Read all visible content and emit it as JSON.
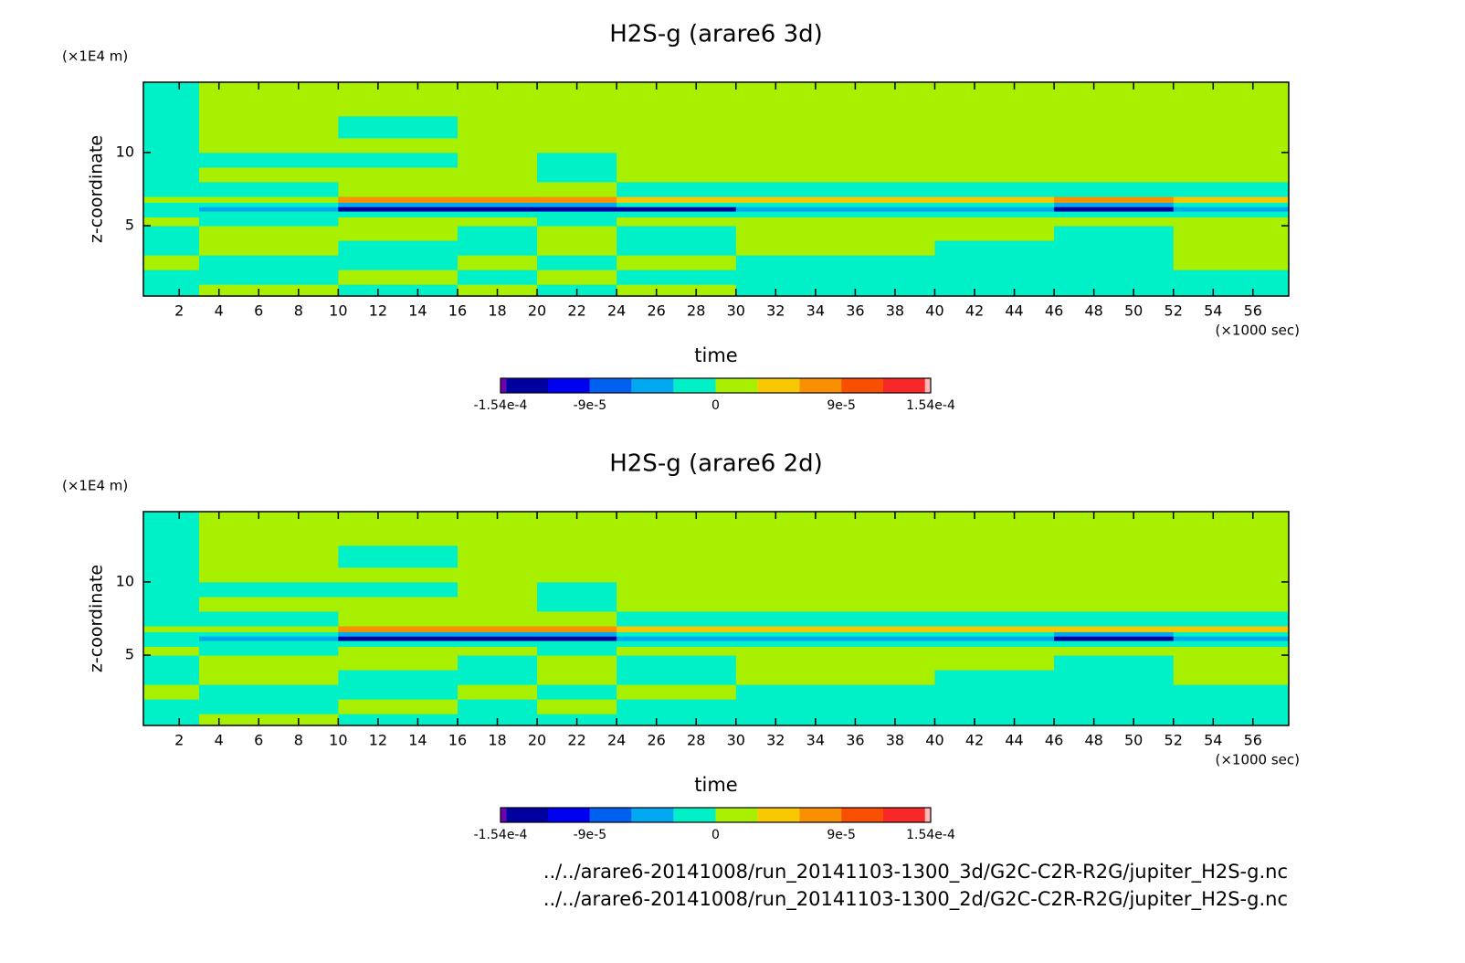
{
  "chart_data": [
    {
      "type": "contour",
      "title": "H2S-g (arare6 3d)",
      "ylabel": "z-coordinate",
      "ylabel_unit": "(×1E4 m)",
      "xlabel": "time",
      "xlabel_unit": "(×1000 sec)",
      "xlim": [
        0.2,
        57.8
      ],
      "ylim": [
        0.2,
        14.8
      ],
      "xticks": [
        2,
        4,
        6,
        8,
        10,
        12,
        14,
        16,
        18,
        20,
        22,
        24,
        26,
        28,
        30,
        32,
        34,
        36,
        38,
        40,
        42,
        44,
        46,
        48,
        50,
        52,
        54,
        56
      ],
      "yticks": [
        5,
        10
      ],
      "x_edges": [
        0.2,
        3,
        10,
        16,
        20,
        24,
        30,
        40,
        46,
        52,
        57.8
      ],
      "y_edges": [
        0.2,
        1,
        2,
        3,
        4,
        5,
        5.6,
        6,
        6.3,
        6.6,
        7,
        8,
        9,
        10,
        11,
        12.5,
        14.8
      ],
      "z": [
        [
          -1e-05,
          1e-05,
          -1e-05,
          1e-05,
          -1e-05,
          1e-05,
          -1e-05,
          -1e-05,
          -1e-05,
          -1e-05
        ],
        [
          -1e-05,
          -1e-05,
          1e-05,
          -1e-05,
          1e-05,
          -1e-05,
          -1e-05,
          -1e-05,
          -1e-05,
          -1e-05
        ],
        [
          1e-05,
          -1e-05,
          -1e-05,
          1e-05,
          -1e-05,
          1e-05,
          -1e-05,
          -1e-05,
          -1e-05,
          1e-05
        ],
        [
          -1e-05,
          1e-05,
          -1e-05,
          -1e-05,
          1e-05,
          -1e-05,
          1e-05,
          -1e-05,
          -1e-05,
          1e-05
        ],
        [
          -1e-05,
          1e-05,
          1e-05,
          -1e-05,
          1e-05,
          -1e-05,
          1e-05,
          1e-05,
          -1e-05,
          1e-05
        ],
        [
          1e-05,
          -1e-05,
          1e-05,
          1e-05,
          -1e-05,
          1e-05,
          1e-05,
          1e-05,
          1e-05,
          1e-05
        ],
        [
          -1e-05,
          -1e-05,
          -1e-05,
          -1e-05,
          -1e-05,
          -1e-05,
          -1e-05,
          -1e-05,
          -1e-05,
          -1e-05
        ],
        [
          -1e-05,
          -4e-05,
          -0.00013,
          -0.00013,
          -0.00013,
          -0.00013,
          -4e-05,
          -4e-05,
          -0.00013,
          -4e-05
        ],
        [
          -1e-05,
          -1e-05,
          -4e-05,
          -4e-05,
          -4e-05,
          -1e-05,
          -1e-05,
          -1e-05,
          -4e-05,
          -1e-05
        ],
        [
          1e-05,
          1e-05,
          7e-05,
          7e-05,
          7e-05,
          4e-05,
          4e-05,
          4e-05,
          7e-05,
          4e-05
        ],
        [
          -1e-05,
          -1e-05,
          1e-05,
          1e-05,
          1e-05,
          -1e-05,
          -1e-05,
          -1e-05,
          -1e-05,
          -1e-05
        ],
        [
          -1e-05,
          1e-05,
          1e-05,
          1e-05,
          -1e-05,
          1e-05,
          1e-05,
          1e-05,
          1e-05,
          1e-05
        ],
        [
          -1e-05,
          -1e-05,
          -1e-05,
          1e-05,
          -1e-05,
          1e-05,
          1e-05,
          1e-05,
          1e-05,
          1e-05
        ],
        [
          -1e-05,
          1e-05,
          1e-05,
          1e-05,
          1e-05,
          1e-05,
          1e-05,
          1e-05,
          1e-05,
          1e-05
        ],
        [
          -1e-05,
          1e-05,
          -1e-05,
          1e-05,
          1e-05,
          1e-05,
          1e-05,
          1e-05,
          1e-05,
          1e-05
        ],
        [
          -1e-05,
          1e-05,
          1e-05,
          1e-05,
          1e-05,
          1e-05,
          1e-05,
          1e-05,
          1e-05,
          1e-05
        ]
      ],
      "colorbar": {
        "lim": [
          -0.000154,
          0.000154
        ],
        "levels": [
          -0.00015,
          -0.00012,
          -9e-05,
          -6e-05,
          -3e-05,
          0,
          3e-05,
          6e-05,
          9e-05,
          0.00012,
          0.00015
        ],
        "colors": [
          "#7000b0",
          "#0000a0",
          "#0000f0",
          "#0060f0",
          "#00a8f0",
          "#00f0c8",
          "#a8f000",
          "#f8c800",
          "#f89000",
          "#f85000",
          "#f82828",
          "#ffb8b8"
        ],
        "ticks": [
          {
            "value": -0.000154,
            "label": "-1.54e-4"
          },
          {
            "value": -9e-05,
            "label": "-9e-5"
          },
          0,
          {
            "value": 9e-05,
            "label": "9e-5"
          },
          {
            "value": 0.000154,
            "label": "1.54e-4"
          }
        ]
      }
    },
    {
      "type": "contour",
      "title": "H2S-g (arare6 2d)",
      "ylabel": "z-coordinate",
      "ylabel_unit": "(×1E4 m)",
      "xlabel": "time",
      "xlabel_unit": "(×1000 sec)",
      "xlim": [
        0.2,
        57.8
      ],
      "ylim": [
        0.2,
        14.8
      ],
      "xticks": [
        2,
        4,
        6,
        8,
        10,
        12,
        14,
        16,
        18,
        20,
        22,
        24,
        26,
        28,
        30,
        32,
        34,
        36,
        38,
        40,
        42,
        44,
        46,
        48,
        50,
        52,
        54,
        56
      ],
      "yticks": [
        5,
        10
      ],
      "x_edges": [
        0.2,
        3,
        10,
        16,
        20,
        24,
        30,
        40,
        46,
        52,
        57.8
      ],
      "y_edges": [
        0.2,
        1,
        2,
        3,
        4,
        5,
        5.6,
        6,
        6.3,
        6.6,
        7,
        8,
        9,
        10,
        11,
        12.5,
        14.8
      ],
      "z": [
        [
          -1e-05,
          1e-05,
          -1e-05,
          -1e-05,
          -1e-05,
          -1e-05,
          -1e-05,
          -1e-05,
          -1e-05,
          -1e-05
        ],
        [
          -1e-05,
          -1e-05,
          1e-05,
          -1e-05,
          1e-05,
          -1e-05,
          -1e-05,
          -1e-05,
          -1e-05,
          -1e-05
        ],
        [
          1e-05,
          -1e-05,
          -1e-05,
          1e-05,
          -1e-05,
          1e-05,
          -1e-05,
          -1e-05,
          -1e-05,
          -1e-05
        ],
        [
          -1e-05,
          1e-05,
          -1e-05,
          -1e-05,
          1e-05,
          -1e-05,
          1e-05,
          -1e-05,
          -1e-05,
          1e-05
        ],
        [
          -1e-05,
          1e-05,
          1e-05,
          -1e-05,
          1e-05,
          -1e-05,
          1e-05,
          1e-05,
          -1e-05,
          1e-05
        ],
        [
          1e-05,
          -1e-05,
          1e-05,
          1e-05,
          -1e-05,
          1e-05,
          1e-05,
          1e-05,
          1e-05,
          1e-05
        ],
        [
          -1e-05,
          -1e-05,
          -1e-05,
          -1e-05,
          -1e-05,
          -1e-05,
          -1e-05,
          -1e-05,
          -1e-05,
          -1e-05
        ],
        [
          -1e-05,
          -4e-05,
          -0.00013,
          -0.00013,
          -0.00013,
          -4e-05,
          -4e-05,
          -4e-05,
          -0.00013,
          -4e-05
        ],
        [
          -1e-05,
          -1e-05,
          -4e-05,
          -4e-05,
          -4e-05,
          -1e-05,
          -1e-05,
          -1e-05,
          -4e-05,
          -1e-05
        ],
        [
          1e-05,
          1e-05,
          7e-05,
          7e-05,
          7e-05,
          4e-05,
          4e-05,
          4e-05,
          4e-05,
          4e-05
        ],
        [
          -1e-05,
          -1e-05,
          1e-05,
          1e-05,
          1e-05,
          -1e-05,
          -1e-05,
          -1e-05,
          -1e-05,
          -1e-05
        ],
        [
          -1e-05,
          1e-05,
          1e-05,
          1e-05,
          -1e-05,
          1e-05,
          1e-05,
          1e-05,
          1e-05,
          1e-05
        ],
        [
          -1e-05,
          -1e-05,
          -1e-05,
          1e-05,
          -1e-05,
          1e-05,
          1e-05,
          1e-05,
          1e-05,
          1e-05
        ],
        [
          -1e-05,
          1e-05,
          1e-05,
          1e-05,
          1e-05,
          1e-05,
          1e-05,
          1e-05,
          1e-05,
          1e-05
        ],
        [
          -1e-05,
          1e-05,
          -1e-05,
          1e-05,
          1e-05,
          1e-05,
          1e-05,
          1e-05,
          1e-05,
          1e-05
        ],
        [
          -1e-05,
          1e-05,
          1e-05,
          1e-05,
          1e-05,
          1e-05,
          1e-05,
          1e-05,
          1e-05,
          1e-05
        ]
      ],
      "colorbar": {
        "lim": [
          -0.000154,
          0.000154
        ],
        "levels": [
          -0.00015,
          -0.00012,
          -9e-05,
          -6e-05,
          -3e-05,
          0,
          3e-05,
          6e-05,
          9e-05,
          0.00012,
          0.00015
        ],
        "colors": [
          "#7000b0",
          "#0000a0",
          "#0000f0",
          "#0060f0",
          "#00a8f0",
          "#00f0c8",
          "#a8f000",
          "#f8c800",
          "#f89000",
          "#f85000",
          "#f82828",
          "#ffb8b8"
        ],
        "ticks": [
          {
            "value": -0.000154,
            "label": "-1.54e-4"
          },
          {
            "value": -9e-05,
            "label": "-9e-5"
          },
          0,
          {
            "value": 9e-05,
            "label": "9e-5"
          },
          {
            "value": 0.000154,
            "label": "1.54e-4"
          }
        ]
      }
    }
  ],
  "footnotes": [
    "../../arare6-20141008/run_20141103-1300_3d/G2C-C2R-R2G/jupiter_H2S-g.nc",
    "../../arare6-20141008/run_20141103-1300_2d/G2C-C2R-R2G/jupiter_H2S-g.nc"
  ]
}
